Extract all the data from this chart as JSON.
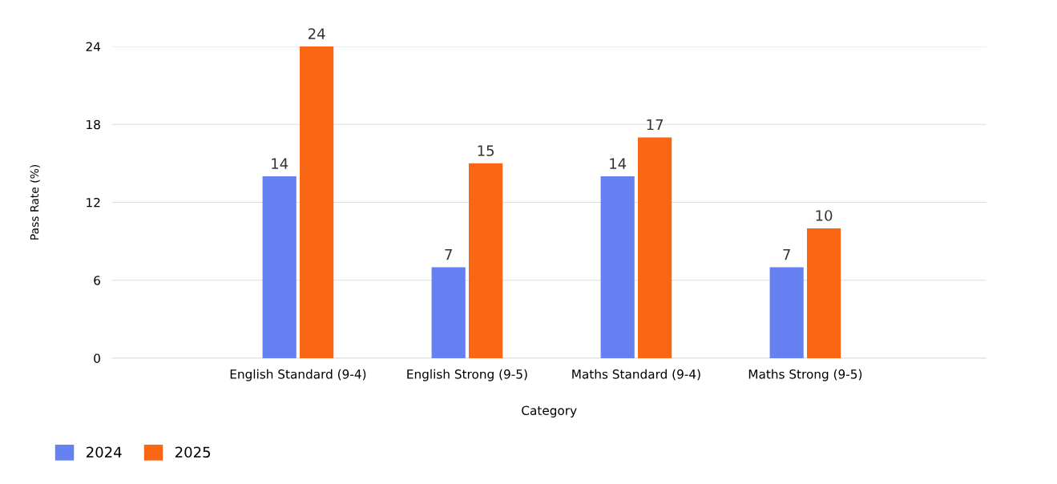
{
  "chart_data": {
    "type": "bar",
    "xlabel": "Category",
    "ylabel": "Pass Rate (%)",
    "categories": [
      "English Standard (9-4)",
      "English Strong (9-5)",
      "Maths Standard (9-4)",
      "Maths Strong (9-5)"
    ],
    "series": [
      {
        "name": "2024",
        "color": "#6580f0",
        "values": [
          14,
          7,
          14,
          7
        ]
      },
      {
        "name": "2025",
        "color": "#f96714",
        "values": [
          24,
          15,
          17,
          10
        ]
      }
    ],
    "ylim": [
      0,
      24
    ],
    "yticks": [
      0,
      6,
      12,
      18,
      24
    ],
    "grid": "y",
    "legend": "bottom left",
    "data_labels": true
  }
}
